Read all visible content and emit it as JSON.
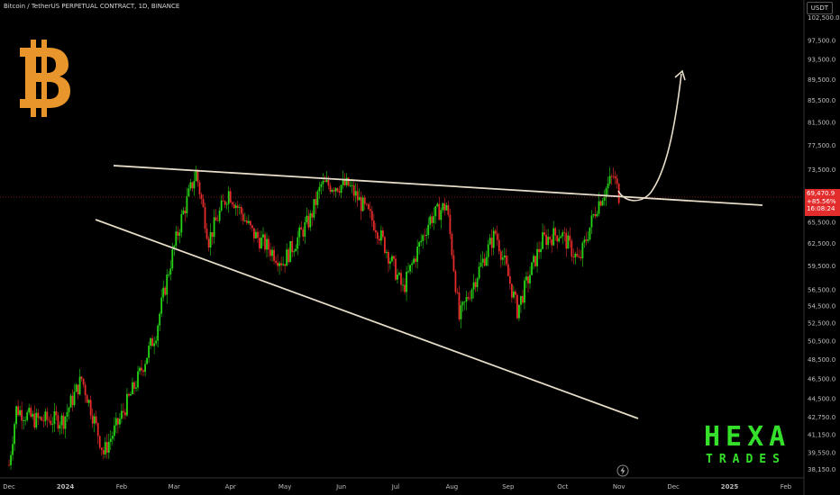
{
  "header": {
    "symbol_line": "Bitcoin / TetherUS PERPETUAL CONTRACT, 1D, BINANCE"
  },
  "currency_button": "USDT",
  "price_badge": {
    "price": "69,470.9",
    "change": "+85.56%",
    "countdown": "16:08:24"
  },
  "brand": {
    "line1": "HEXA",
    "line2": "TRADES",
    "color": "#35e02a"
  },
  "icons": {
    "logo": "bitcoin-logo",
    "bolt": "lightning-icon"
  },
  "colors": {
    "up": "#26d416",
    "down": "#e62b2b",
    "trendline": "#e6dcc8",
    "accent_btc": "#e8952b"
  },
  "chart_data": {
    "type": "candlestick",
    "x_ticks": [
      "Dec",
      "2024",
      "Feb",
      "Mar",
      "Apr",
      "May",
      "Jun",
      "Jul",
      "Aug",
      "Sep",
      "Oct",
      "Nov",
      "Dec",
      "2025",
      "Feb"
    ],
    "y_ticks": [
      38150,
      39550,
      41150,
      42750,
      44500,
      46500,
      48500,
      50500,
      52500,
      54500,
      56500,
      59500,
      62500,
      65500,
      69470.9,
      73500,
      77500,
      81500,
      85500,
      89500,
      93500,
      97500,
      102500
    ],
    "y_tick_labels": [
      "38,150.0",
      "39,550.0",
      "41,150.0",
      "42,750.0",
      "44,500.0",
      "46,500.0",
      "48,500.0",
      "50,500.0",
      "52,500.0",
      "54,500.0",
      "56,500.0",
      "59,500.0",
      "62,500.0",
      "65,500.0",
      "69,470.9",
      "73,500.0",
      "77,500.0",
      "81,500.0",
      "85,500.0",
      "89,500.0",
      "93,500.0",
      "97,500.0",
      "102,500.0"
    ],
    "ylim": [
      37500,
      104000
    ],
    "scale": "log",
    "approx_close_path": [
      [
        "2023-12-01",
        38500
      ],
      [
        "2023-12-05",
        43500
      ],
      [
        "2023-12-15",
        42500
      ],
      [
        "2023-12-31",
        42500
      ],
      [
        "2024-01-10",
        46500
      ],
      [
        "2024-01-22",
        39500
      ],
      [
        "2024-01-31",
        42500
      ],
      [
        "2024-02-10",
        46500
      ],
      [
        "2024-02-20",
        51500
      ],
      [
        "2024-02-28",
        60000
      ],
      [
        "2024-03-05",
        66000
      ],
      [
        "2024-03-13",
        73000
      ],
      [
        "2024-03-20",
        63000
      ],
      [
        "2024-03-31",
        70000
      ],
      [
        "2024-04-13",
        64000
      ],
      [
        "2024-04-30",
        60000
      ],
      [
        "2024-05-15",
        66000
      ],
      [
        "2024-05-21",
        71000
      ],
      [
        "2024-06-05",
        71000
      ],
      [
        "2024-06-20",
        65000
      ],
      [
        "2024-07-05",
        56500
      ],
      [
        "2024-07-20",
        66000
      ],
      [
        "2024-07-29",
        68000
      ],
      [
        "2024-08-05",
        53000
      ],
      [
        "2024-08-25",
        64000
      ],
      [
        "2024-09-06",
        54000
      ],
      [
        "2024-09-20",
        63000
      ],
      [
        "2024-09-30",
        64000
      ],
      [
        "2024-10-10",
        60000
      ],
      [
        "2024-10-20",
        68000
      ],
      [
        "2024-10-29",
        72500
      ],
      [
        "2024-11-01",
        69470.9
      ]
    ],
    "annotations": [
      "upper descending trendline",
      "lower support trendline",
      "projected breakout arrow"
    ]
  }
}
